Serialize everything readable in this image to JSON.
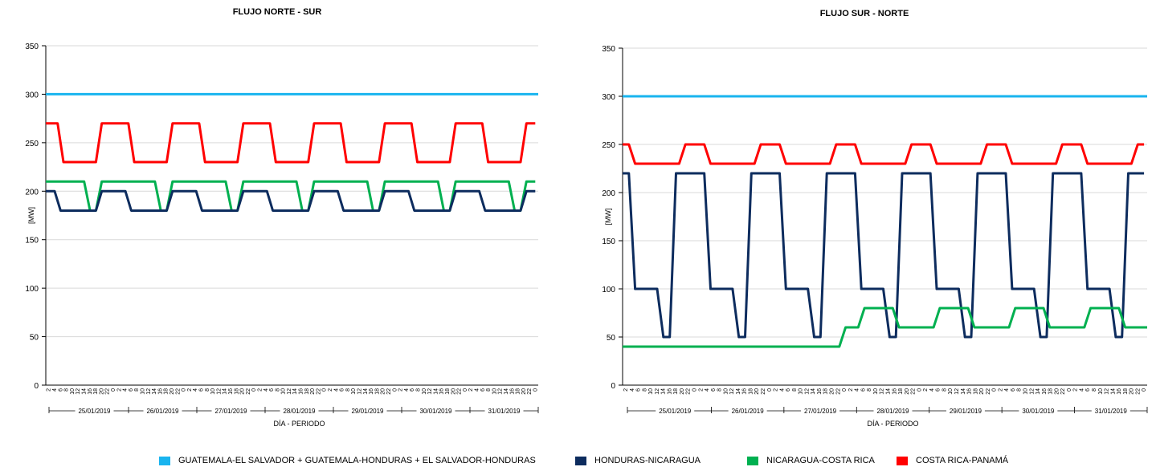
{
  "chart_data": [
    {
      "type": "line",
      "title": "FLUJO NORTE - SUR",
      "ylabel": "[MW]",
      "xlabel": "DÍA - PERIODO",
      "ylim": [
        0,
        350
      ],
      "yticks": [
        0,
        50,
        100,
        150,
        200,
        250,
        300,
        350
      ],
      "x_ticks": [
        "2",
        "4",
        "6",
        "8",
        "10",
        "12",
        "14",
        "16",
        "18",
        "20",
        "22",
        "0"
      ],
      "days": [
        "25/01/2019",
        "26/01/2019",
        "27/01/2019",
        "28/01/2019",
        "29/01/2019",
        "30/01/2019",
        "31/01/2019"
      ],
      "grid": "horizontal",
      "series": [
        {
          "name": "GUATEMALA-EL SALVADOR + GUATEMALA-HONDURAS + EL SALVADOR-HONDURAS",
          "color": "#19b4ef",
          "segments": [
            [
              1,
              300
            ],
            [
              168,
              300
            ]
          ]
        },
        {
          "name": "COSTA RICA-PANAMÁ",
          "color": "#ff0000",
          "day_steps": [
            [
              0,
              270
            ],
            [
              6,
              230
            ],
            [
              19,
              270
            ],
            [
              24,
              270
            ]
          ]
        },
        {
          "name": "NICARAGUA-COSTA RICA",
          "color": "#00b050",
          "day_steps": [
            [
              0,
              210
            ],
            [
              15,
              180
            ],
            [
              19,
              210
            ],
            [
              24,
              210
            ]
          ]
        },
        {
          "name": "HONDURAS-NICARAGUA",
          "color": "#0d2c5e",
          "day_steps": [
            [
              0,
              200
            ],
            [
              5,
              180
            ],
            [
              19,
              200
            ],
            [
              24,
              200
            ]
          ]
        }
      ]
    },
    {
      "type": "line",
      "title": "FLUJO SUR - NORTE",
      "ylabel": "[MW]",
      "xlabel": "DÍA - PERIODO",
      "ylim": [
        0,
        350
      ],
      "yticks": [
        0,
        50,
        100,
        150,
        200,
        250,
        300,
        350
      ],
      "x_ticks": [
        "2",
        "4",
        "6",
        "8",
        "10",
        "12",
        "14",
        "16",
        "18",
        "20",
        "22",
        "0"
      ],
      "days": [
        "25/01/2019",
        "26/01/2019",
        "27/01/2019",
        "28/01/2019",
        "29/01/2019",
        "30/01/2019",
        "31/01/2019"
      ],
      "grid": "horizontal",
      "series": [
        {
          "name": "GUATEMALA-EL SALVADOR + GUATEMALA-HONDURAS + EL SALVADOR-HONDURAS",
          "color": "#19b4ef",
          "segments": [
            [
              1,
              300
            ],
            [
              168,
              300
            ]
          ]
        },
        {
          "name": "COSTA RICA-PANAMÁ",
          "color": "#ff0000",
          "day_steps": [
            [
              0,
              250
            ],
            [
              4,
              230
            ],
            [
              20,
              250
            ],
            [
              24,
              250
            ]
          ]
        },
        {
          "name": "HONDURAS-NICARAGUA",
          "color": "#0d2c5e",
          "day_steps": [
            [
              0,
              220
            ],
            [
              4,
              100
            ],
            [
              13,
              50
            ],
            [
              17,
              220
            ],
            [
              24,
              220
            ]
          ]
        },
        {
          "name": "NICARAGUA-COSTA RICA",
          "color": "#00b050",
          "points": [
            [
              1,
              40
            ],
            [
              70,
              40
            ],
            [
              72,
              60
            ],
            [
              76,
              60
            ],
            [
              78,
              80
            ],
            [
              87,
              80
            ],
            [
              89,
              60
            ],
            [
              100,
              60
            ],
            [
              102,
              80
            ],
            [
              111,
              80
            ],
            [
              113,
              60
            ],
            [
              124,
              60
            ],
            [
              126,
              80
            ],
            [
              135,
              80
            ],
            [
              137,
              60
            ],
            [
              148,
              60
            ],
            [
              150,
              80
            ],
            [
              159,
              80
            ],
            [
              161,
              60
            ],
            [
              168,
              60
            ]
          ]
        }
      ]
    }
  ],
  "legend": [
    {
      "label": "GUATEMALA-EL SALVADOR + GUATEMALA-HONDURAS + EL SALVADOR-HONDURAS",
      "color": "#19b4ef"
    },
    {
      "label": "HONDURAS-NICARAGUA",
      "color": "#0d2c5e"
    },
    {
      "label": "NICARAGUA-COSTA RICA",
      "color": "#00b050"
    },
    {
      "label": "COSTA RICA-PANAMÁ",
      "color": "#ff0000"
    }
  ]
}
